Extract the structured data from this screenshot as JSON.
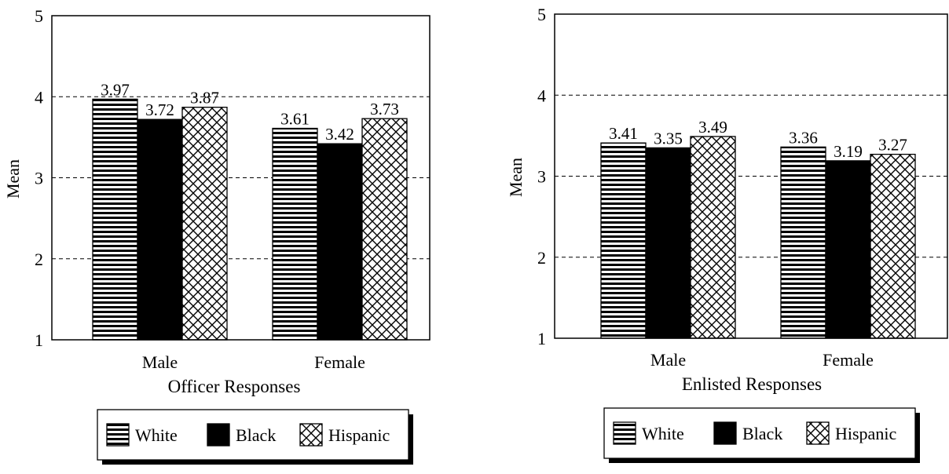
{
  "chart_data": [
    {
      "type": "bar",
      "categories": [
        "Male",
        "Female"
      ],
      "series": [
        {
          "name": "White",
          "values": [
            3.97,
            3.61
          ]
        },
        {
          "name": "Black",
          "values": [
            3.72,
            3.42
          ]
        },
        {
          "name": "Hispanic",
          "values": [
            3.87,
            3.73
          ]
        }
      ],
      "value_labels": [
        [
          "3.97",
          "3.61"
        ],
        [
          "3.72",
          "3.42"
        ],
        [
          "3.87",
          "3.73"
        ]
      ],
      "xlabel": "Officer Responses",
      "ylabel": "Mean",
      "ylim": [
        1,
        5
      ],
      "yticks": [
        "1",
        "2",
        "3",
        "4",
        "5"
      ],
      "grid": "horizontal dashed",
      "legend": "below"
    },
    {
      "type": "bar",
      "categories": [
        "Male",
        "Female"
      ],
      "series": [
        {
          "name": "White",
          "values": [
            3.41,
            3.36
          ]
        },
        {
          "name": "Black",
          "values": [
            3.35,
            3.19
          ]
        },
        {
          "name": "Hispanic",
          "values": [
            3.49,
            3.27
          ]
        }
      ],
      "value_labels": [
        [
          "3.41",
          "3.36"
        ],
        [
          "3.35",
          "3.19"
        ],
        [
          "3.49",
          "3.27"
        ]
      ],
      "xlabel": "Enlisted Responses",
      "ylabel": "Mean",
      "ylim": [
        1,
        5
      ],
      "yticks": [
        "1",
        "2",
        "3",
        "4",
        "5"
      ],
      "grid": "horizontal dashed",
      "legend": "below"
    }
  ],
  "series_styles": [
    {
      "name": "White",
      "pattern": "horizontal-stripes"
    },
    {
      "name": "Black",
      "pattern": "solid",
      "color": "#000000"
    },
    {
      "name": "Hispanic",
      "pattern": "crosshatch"
    }
  ]
}
